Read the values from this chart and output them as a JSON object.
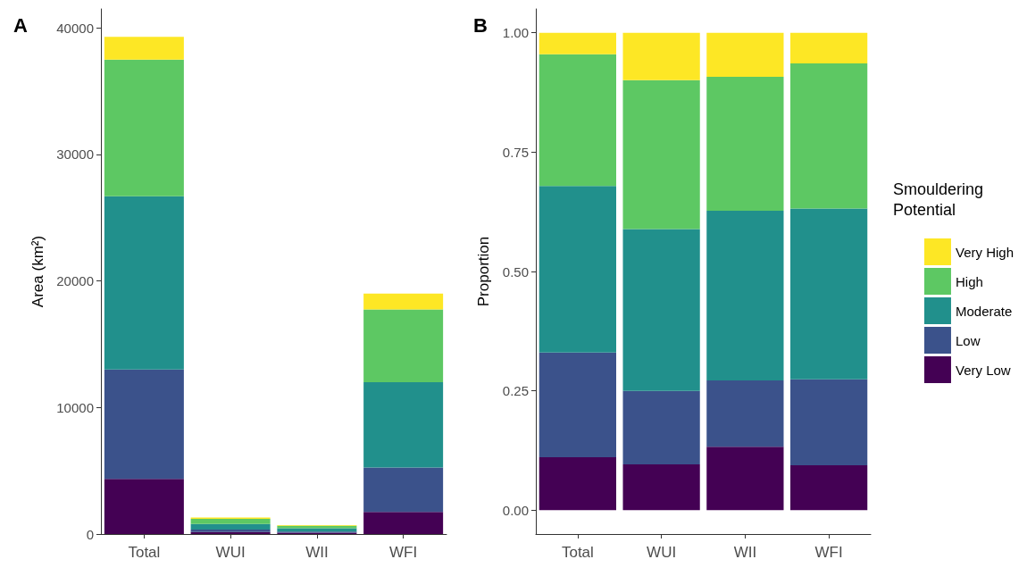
{
  "chart_data": [
    {
      "type": "bar",
      "title": "A",
      "ylabel": "Area (km²)",
      "categories": [
        "Total",
        "WUI",
        "WII",
        "WFI"
      ],
      "stacked": true,
      "grid": false,
      "legend": false,
      "ylim": [
        0,
        41500
      ],
      "yticks": [
        0,
        10000,
        20000,
        30000,
        40000
      ],
      "series": [
        {
          "color": "#440154",
          "values": [
            4350,
            150,
            100,
            1750
          ]
        },
        {
          "color": "#3b528b",
          "values": [
            8650,
            200,
            100,
            3500
          ]
        },
        {
          "color": "#21908c",
          "values": [
            13700,
            450,
            250,
            6750
          ]
        },
        {
          "color": "#5dc863",
          "values": [
            10800,
            400,
            200,
            5750
          ]
        },
        {
          "color": "#fde725",
          "values": [
            1800,
            100,
            50,
            1250
          ]
        }
      ]
    },
    {
      "type": "bar",
      "title": "B",
      "ylabel": "Proportion",
      "legend_title": "Smouldering\nPotential",
      "categories": [
        "Total",
        "WUI",
        "WII",
        "WFI"
      ],
      "stacked": true,
      "grid": false,
      "legend": "right",
      "ylim": [
        -0.05,
        1.05
      ],
      "yticks": [
        {
          "value": 0,
          "label": "0.00"
        },
        {
          "value": 0.25,
          "label": "0.25"
        },
        {
          "value": 0.5,
          "label": "0.50"
        },
        {
          "value": 0.75,
          "label": "0.75"
        },
        {
          "value": 1,
          "label": "1.00"
        }
      ],
      "series": [
        {
          "name": "Very Low",
          "color": "#440154",
          "values": [
            0.111,
            0.096,
            0.133,
            0.094
          ]
        },
        {
          "name": "Low",
          "color": "#3b528b",
          "values": [
            0.219,
            0.154,
            0.139,
            0.18
          ]
        },
        {
          "name": "Moderate",
          "color": "#21908c",
          "values": [
            0.349,
            0.339,
            0.355,
            0.358
          ]
        },
        {
          "name": "High",
          "color": "#5dc863",
          "values": [
            0.276,
            0.312,
            0.281,
            0.304
          ]
        },
        {
          "name": "Very High",
          "color": "#fde725",
          "values": [
            0.045,
            0.099,
            0.092,
            0.064
          ]
        }
      ]
    }
  ]
}
